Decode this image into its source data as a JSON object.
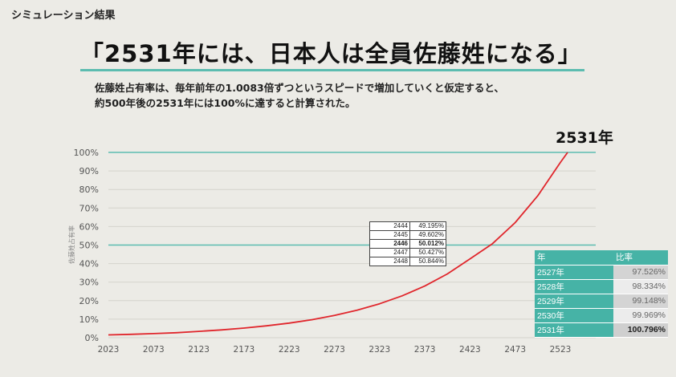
{
  "header": {
    "section_label": "シミュレーション結果",
    "headline": "「2531年には、日本人は全員佐藤姓になる」",
    "description_line1": "佐藤姓占有率は、毎年前年の1.0083倍ずつというスピードで増加していくと仮定すると、",
    "description_line2": "約500年後の2531年には100%に達すると計算された。",
    "final_year_label": "2531年"
  },
  "colors": {
    "accent": "#46b3a6",
    "guide_line": "#5cbcb0",
    "curve": "#e0262c",
    "grid": "#d4d3cc"
  },
  "chart_data": {
    "type": "line",
    "title": "",
    "xlabel": "",
    "ylabel": "佐藤姓占有率",
    "xlim": [
      2023,
      2531
    ],
    "ylim": [
      0,
      100
    ],
    "x_ticks": [
      "2023",
      "2073",
      "2123",
      "2173",
      "2223",
      "2273",
      "2323",
      "2373",
      "2423",
      "2473",
      "2523"
    ],
    "y_ticks": [
      "0%",
      "10%",
      "20%",
      "30%",
      "40%",
      "50%",
      "60%",
      "70%",
      "80%",
      "90%",
      "100%"
    ],
    "guide_lines": [
      50,
      100
    ],
    "series": [
      {
        "name": "佐藤姓占有率",
        "x": [
          2023,
          2048,
          2073,
          2098,
          2123,
          2148,
          2173,
          2198,
          2223,
          2248,
          2273,
          2298,
          2323,
          2348,
          2373,
          2398,
          2423,
          2448,
          2473,
          2498,
          2523,
          2531
        ],
        "values": [
          1.5,
          1.8,
          2.2,
          2.7,
          3.4,
          4.2,
          5.2,
          6.4,
          7.9,
          9.7,
          12.0,
          14.8,
          18.3,
          22.6,
          27.9,
          34.4,
          42.5,
          50.8,
          62.1,
          76.6,
          94.6,
          100.8
        ]
      }
    ]
  },
  "mini_table": {
    "rows": [
      {
        "year": "2444",
        "value": "49.195%",
        "highlight": false
      },
      {
        "year": "2445",
        "value": "49.602%",
        "highlight": false
      },
      {
        "year": "2446",
        "value": "50.012%",
        "highlight": true
      },
      {
        "year": "2447",
        "value": "50.427%",
        "highlight": false
      },
      {
        "year": "2448",
        "value": "50.844%",
        "highlight": false
      }
    ]
  },
  "ratio_table": {
    "headers": [
      "年",
      "比率"
    ],
    "rows": [
      {
        "year": "2527年",
        "value": "97.526%"
      },
      {
        "year": "2528年",
        "value": "98.334%"
      },
      {
        "year": "2529年",
        "value": "99.148%"
      },
      {
        "year": "2530年",
        "value": "99.969%"
      },
      {
        "year": "2531年",
        "value": "100.796%"
      }
    ]
  }
}
